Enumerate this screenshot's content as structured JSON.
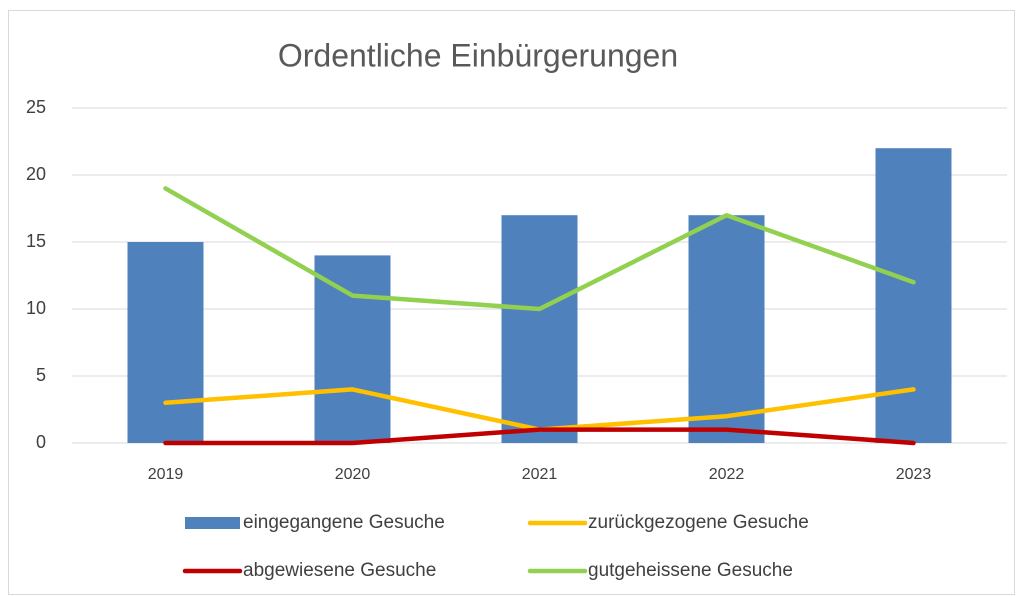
{
  "chart_data": {
    "type": "bar",
    "title": "Ordentliche Einbürgerungen",
    "categories": [
      "2019",
      "2020",
      "2021",
      "2022",
      "2023"
    ],
    "series": [
      {
        "name": "eingegangene Gesuche",
        "type": "bar",
        "color": "#4f81bd",
        "values": [
          15,
          14,
          17,
          17,
          22
        ]
      },
      {
        "name": "zurückgezogene Gesuche",
        "type": "line",
        "color": "#ffc000",
        "values": [
          3,
          4,
          1,
          2,
          4
        ]
      },
      {
        "name": "abgewiesene Gesuche",
        "type": "line",
        "color": "#c00000",
        "values": [
          0,
          0,
          1,
          1,
          0
        ]
      },
      {
        "name": "gutgeheissene Gesuche",
        "type": "line",
        "color": "#92d050",
        "values": [
          19,
          11,
          10,
          17,
          12
        ]
      }
    ],
    "ylim": [
      0,
      25
    ],
    "yticks": [
      0,
      5,
      10,
      15,
      20,
      25
    ],
    "grid": true,
    "legend": "bottom"
  }
}
